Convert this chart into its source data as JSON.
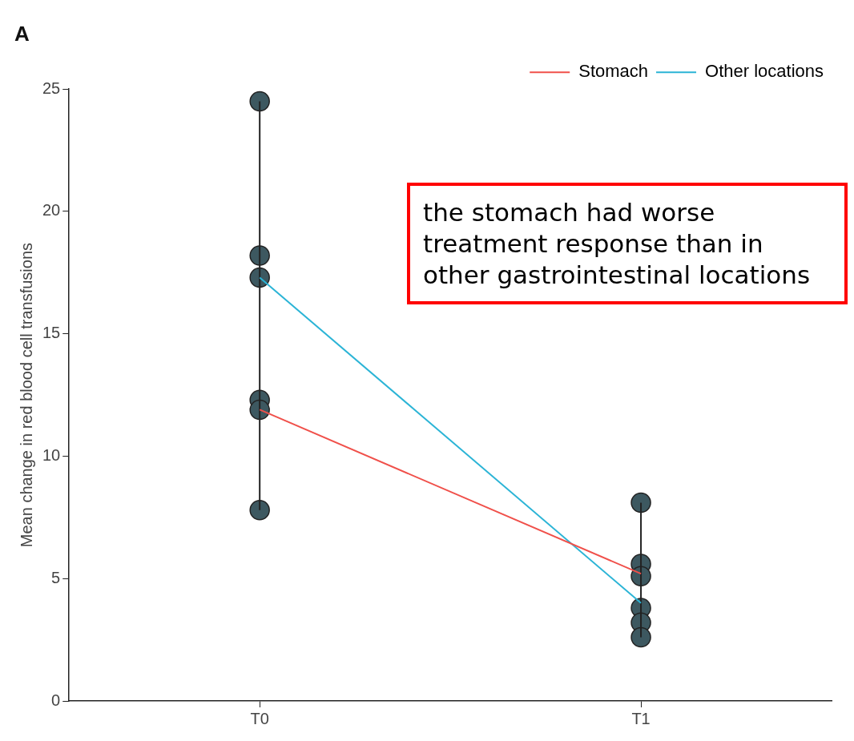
{
  "chart_data": {
    "type": "line",
    "title": "A",
    "ylabel": "Mean change in red blood cell transfusions",
    "categories": [
      "T0",
      "T1"
    ],
    "ylim": [
      0,
      25
    ],
    "yticks": [
      0,
      5,
      10,
      15,
      20,
      25
    ],
    "grid": false,
    "legend": "top right",
    "marker": "none",
    "series": [
      {
        "name": "Stomach",
        "color": "#f0504a",
        "values": [
          11.9,
          5.2
        ]
      },
      {
        "name": "Other locations",
        "color": "#2bb4d6",
        "values": [
          17.3,
          4.0
        ]
      },
      {
        "type": "line",
        "color": "#222222",
        "x": [
          "T0",
          "T0"
        ],
        "values": [
          7.8,
          24.5
        ]
      },
      {
        "type": "line",
        "color": "#222222",
        "x": [
          "T1",
          "T1"
        ],
        "values": [
          2.6,
          8.1
        ]
      },
      {
        "type": "scatter",
        "color": "#3d5860",
        "marker": "circle",
        "x": [
          "T0",
          "T0",
          "T0",
          "T0",
          "T0",
          "T0",
          "T1",
          "T1",
          "T1",
          "T1",
          "T1",
          "T1"
        ],
        "values": [
          24.5,
          18.2,
          17.3,
          12.3,
          11.9,
          7.8,
          8.1,
          5.6,
          5.1,
          3.8,
          3.2,
          2.6
        ]
      }
    ],
    "annotations": [
      "the stomach had worse treatment response than in other gastrointestinal locations"
    ]
  }
}
